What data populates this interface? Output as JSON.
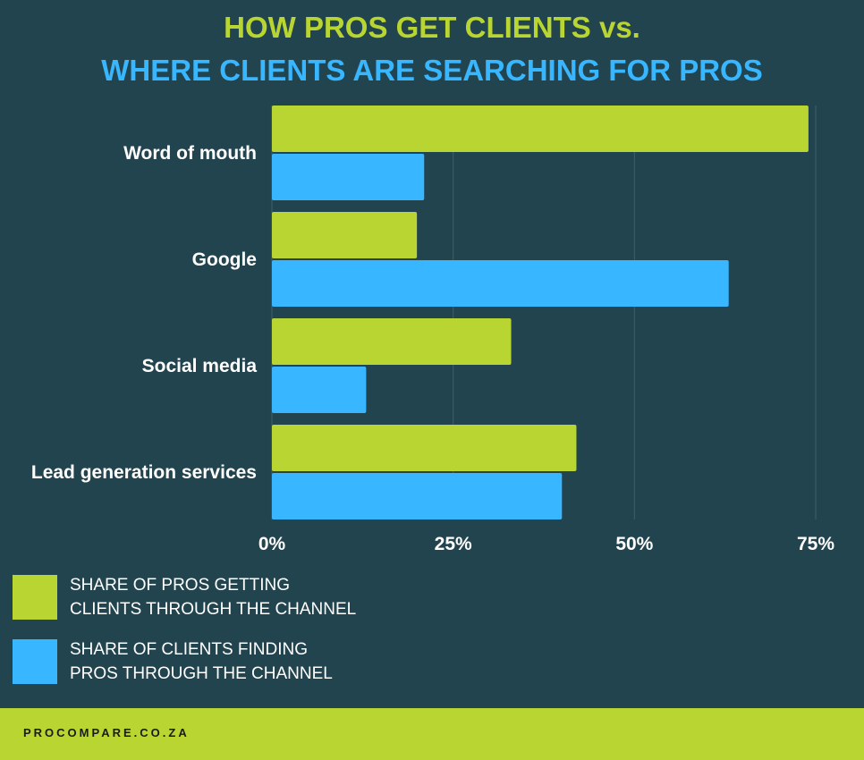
{
  "chart_data": {
    "type": "bar",
    "orientation": "horizontal",
    "title": "HOW PROS GET CLIENTS vs.",
    "subtitle": "WHERE CLIENTS ARE SEARCHING FOR PROS",
    "categories": [
      "Word of mouth",
      "Google",
      "Social media",
      "Lead generation services"
    ],
    "series": [
      {
        "name": "SHARE OF PROS GETTING CLIENTS THROUGH THE CHANNEL",
        "color": "#b9d532",
        "values": [
          74,
          20,
          33,
          42
        ]
      },
      {
        "name": "SHARE OF CLIENTS FINDING PROS THROUGH THE CHANNEL",
        "color": "#38b6ff",
        "values": [
          21,
          63,
          13,
          40
        ]
      }
    ],
    "xticks": [
      "0%",
      "25%",
      "50%",
      "75%"
    ],
    "xtick_values": [
      0,
      25,
      50,
      75
    ],
    "xlim": [
      0,
      75
    ],
    "grid": "vertical",
    "legend_placement": "bottom-left",
    "background": "#22444f"
  },
  "legend": {
    "item1_line1": "SHARE OF PROS GETTING",
    "item1_line2": "CLIENTS THROUGH THE CHANNEL",
    "item2_line1": "SHARE OF CLIENTS FINDING",
    "item2_line2": "PROS THROUGH THE CHANNEL"
  },
  "footer": {
    "text": "PROCOMPARE.CO.ZA"
  }
}
